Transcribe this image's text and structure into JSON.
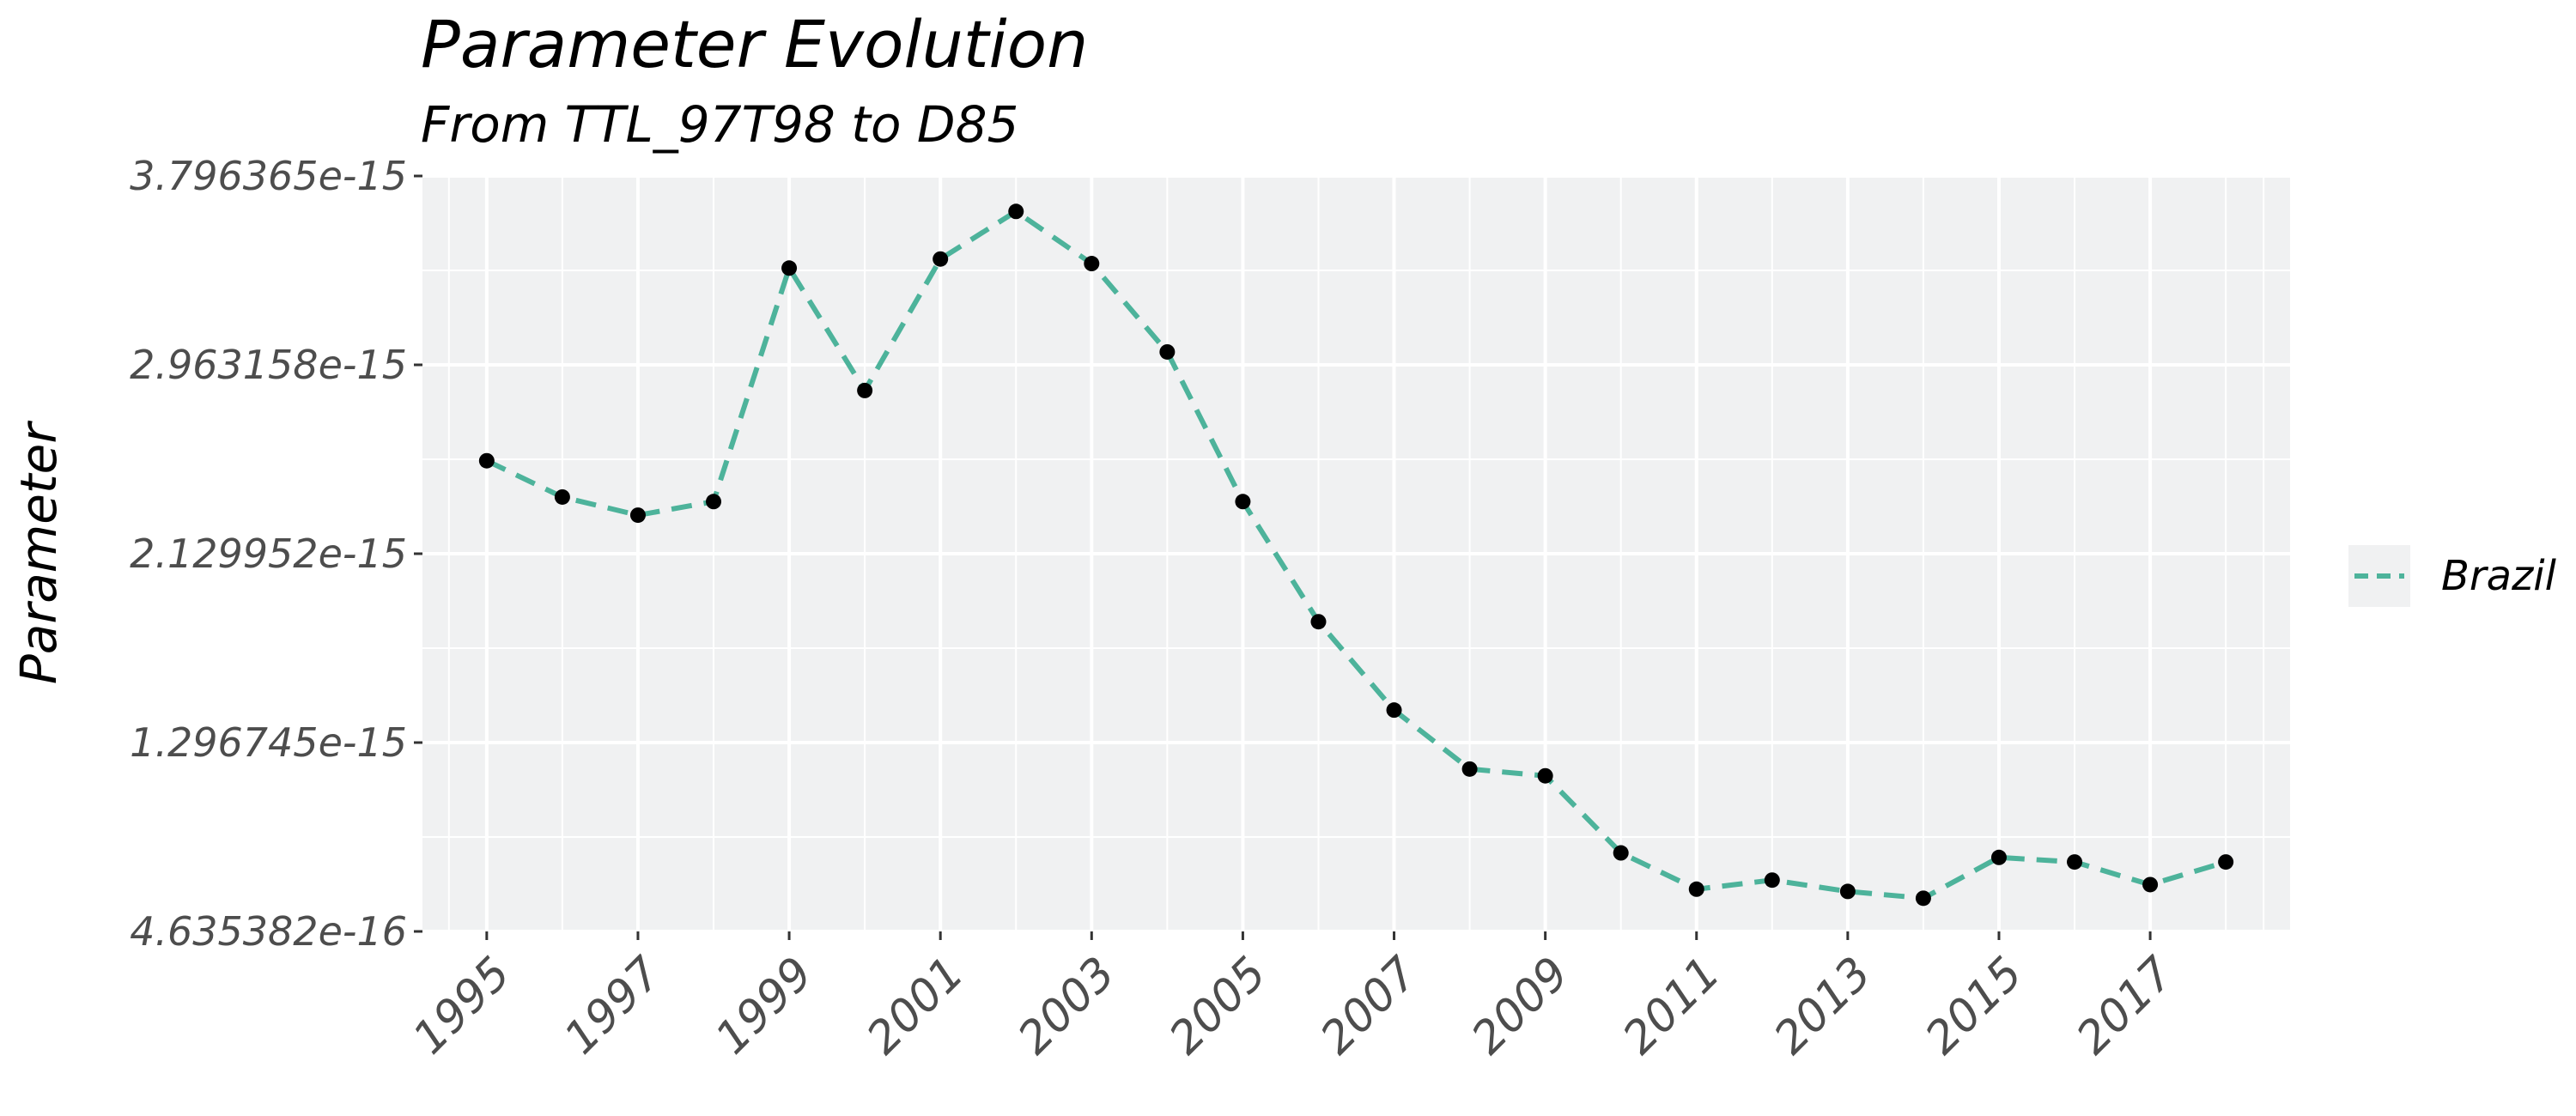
{
  "chart_data": {
    "type": "line",
    "title": "Parameter Evolution",
    "subtitle": "From TTL_97T98 to D85",
    "xlabel": "",
    "ylabel": "Parameter",
    "x": [
      1995,
      1996,
      1997,
      1998,
      1999,
      2000,
      2001,
      2002,
      2003,
      2004,
      2005,
      2006,
      2007,
      2008,
      2009,
      2010,
      2011,
      2012,
      2013,
      2014,
      2015,
      2016,
      2017,
      2018
    ],
    "x_tick_labels": [
      "1995",
      "1997",
      "1999",
      "2001",
      "2003",
      "2005",
      "2007",
      "2009",
      "2011",
      "2013",
      "2015",
      "2017"
    ],
    "x_ticks": [
      1995,
      1997,
      1999,
      2001,
      2003,
      2005,
      2007,
      2009,
      2011,
      2013,
      2015,
      2017
    ],
    "xlim": [
      1994.15,
      2018.85
    ],
    "y_ticks": [
      4.635382e-16,
      1.296745e-15,
      2.129952e-15,
      2.963158e-15,
      3.796365e-15
    ],
    "y_tick_labels": [
      "4.635382e-16",
      "1.296745e-15",
      "2.129952e-15",
      "2.963158e-15",
      "3.796365e-15"
    ],
    "ylim": [
      4.635382e-16,
      3.796365e-15
    ],
    "series": [
      {
        "name": "Brazil",
        "color": "#4db39b",
        "line_style": "dashed",
        "point_color": "#000000",
        "values": [
          2.54e-15,
          2.38e-15,
          2.3e-15,
          2.36e-15,
          3.39e-15,
          2.85e-15,
          3.43e-15,
          3.64e-15,
          3.41e-15,
          3.02e-15,
          2.36e-15,
          1.83e-15,
          1.44e-15,
          1.18e-15,
          1.15e-15,
          8.1e-16,
          6.5e-16,
          6.9e-16,
          6.4e-16,
          6.1e-16,
          7.9e-16,
          7.7e-16,
          6.7e-16,
          7.7e-16
        ]
      }
    ],
    "grid": true,
    "legend_position": "right",
    "panel_background": "#f0f1f2",
    "grid_color": "#ffffff"
  }
}
